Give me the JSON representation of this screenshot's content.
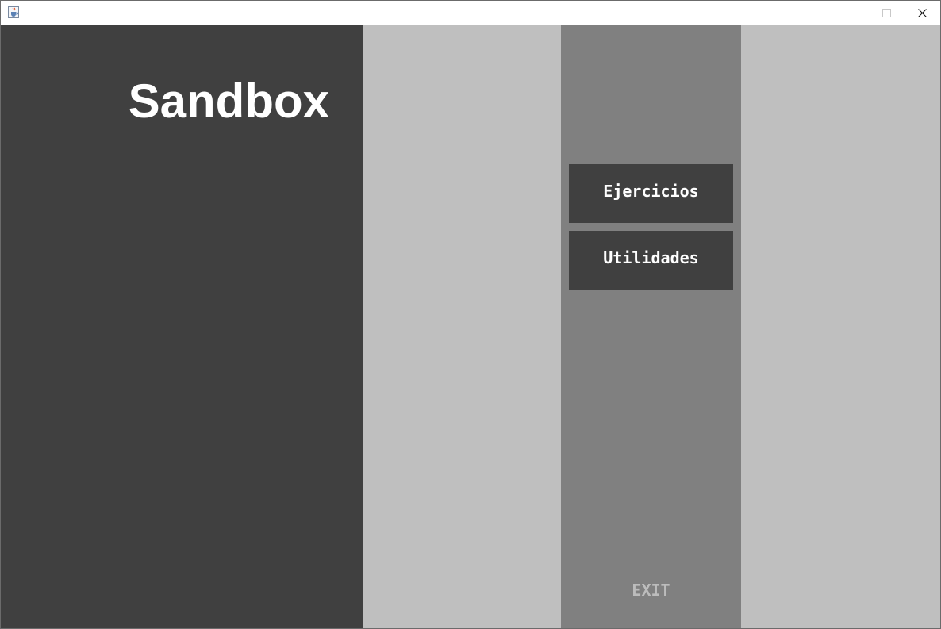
{
  "window": {
    "icon": "java-cup-icon",
    "controls": {
      "minimize": "minimize-icon",
      "maximize": "maximize-icon",
      "close": "close-icon"
    }
  },
  "main": {
    "title": "Sandbox"
  },
  "menu": {
    "buttons": [
      {
        "label": "Ejercicios"
      },
      {
        "label": "Utilidades"
      }
    ],
    "exit_label": "EXIT"
  },
  "colors": {
    "dark_panel": "#404040",
    "light_panel": "#bfbfbf",
    "menu_panel": "#808080",
    "button_text": "#ffffff",
    "exit_text": "#bcbcbc"
  }
}
